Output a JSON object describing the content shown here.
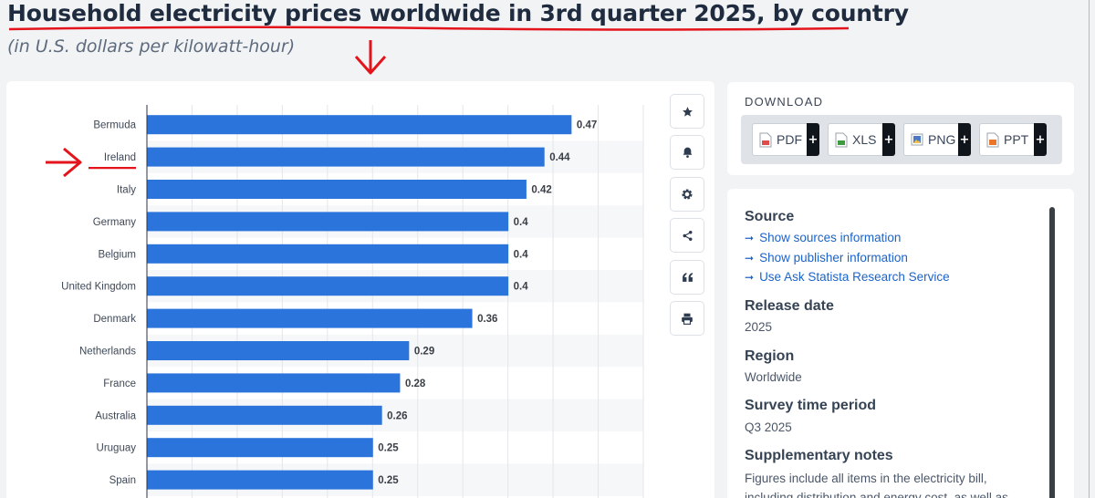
{
  "header": {
    "title": "Household electricity prices worldwide in 3rd quarter 2025, by country",
    "subtitle": "(in U.S. dollars per kilowatt-hour)"
  },
  "chart_data": {
    "type": "bar",
    "orientation": "horizontal",
    "title": "Household electricity prices worldwide in 3rd quarter 2025, by country",
    "subtitle": "(in U.S. dollars per kilowatt-hour)",
    "categories": [
      "Bermuda",
      "Ireland",
      "Italy",
      "Germany",
      "Belgium",
      "United Kingdom",
      "Denmark",
      "Netherlands",
      "France",
      "Australia",
      "Uruguay",
      "Spain"
    ],
    "values": [
      0.47,
      0.44,
      0.42,
      0.4,
      0.4,
      0.4,
      0.36,
      0.29,
      0.28,
      0.26,
      0.25,
      0.25
    ],
    "value_labels": [
      "0.47",
      "0.44",
      "0.42",
      "0.4",
      "0.4",
      "0.4",
      "0.36",
      "0.29",
      "0.28",
      "0.26",
      "0.25",
      "0.25"
    ],
    "xlim": [
      0,
      0.55
    ],
    "grid": true,
    "bar_color": "#2b74dc",
    "highlighted_category": "Ireland",
    "annotation_color": "#e3141b"
  },
  "toolbar": {
    "buttons": [
      {
        "name": "favorite-button",
        "icon": "star-icon",
        "glyph": "★"
      },
      {
        "name": "notification-button",
        "icon": "bell-icon",
        "glyph": ""
      },
      {
        "name": "settings-button",
        "icon": "gear-icon",
        "glyph": "⚙"
      },
      {
        "name": "share-button",
        "icon": "share-icon",
        "glyph": ""
      },
      {
        "name": "cite-button",
        "icon": "quote-icon",
        "glyph": "❝"
      },
      {
        "name": "print-button",
        "icon": "printer-icon",
        "glyph": ""
      }
    ]
  },
  "download": {
    "title": "DOWNLOAD",
    "buttons": [
      {
        "label": "PDF",
        "color": "#e04b4b"
      },
      {
        "label": "XLS",
        "color": "#3f9b3f"
      },
      {
        "label": "PNG",
        "color": "#4a78c4"
      },
      {
        "label": "PPT",
        "color": "#e8762c"
      }
    ],
    "plus": "+"
  },
  "info": {
    "source_title": "Source",
    "links": [
      "Show sources information",
      "Show publisher information",
      "Use Ask Statista Research Service"
    ],
    "release_title": "Release date",
    "release_value": "2025",
    "region_title": "Region",
    "region_value": "Worldwide",
    "period_title": "Survey time period",
    "period_value": "Q3 2025",
    "notes_title": "Supplementary notes",
    "notes_value": "Figures include all items in the electricity bill, including distribution and energy cost, as well as"
  }
}
